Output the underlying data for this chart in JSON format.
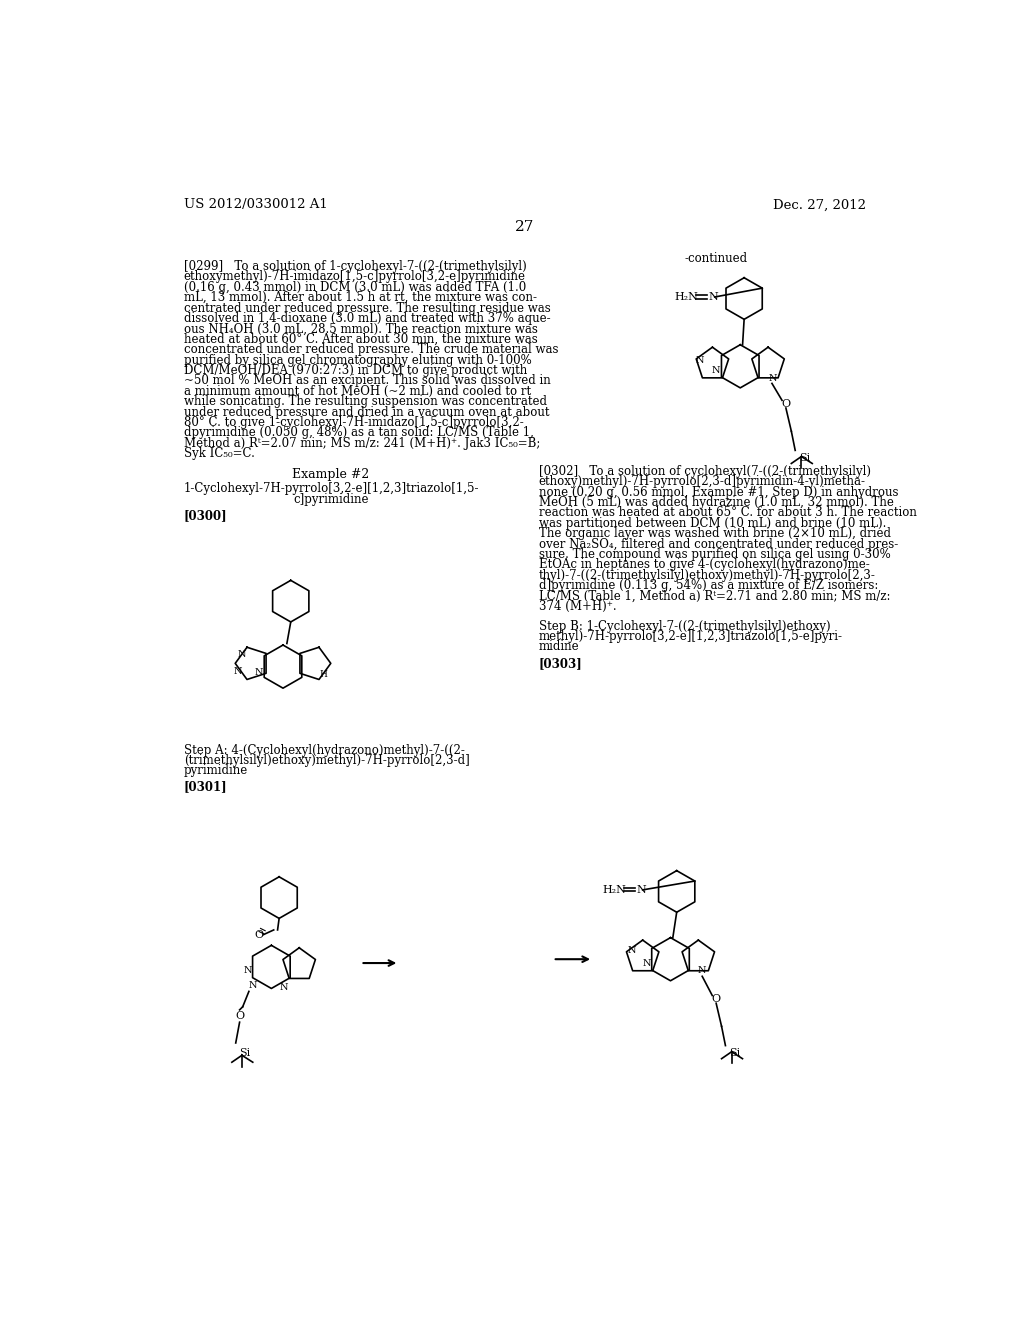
{
  "page_header_left": "US 2012/0330012 A1",
  "page_header_right": "Dec. 27, 2012",
  "page_number": "27",
  "continued_label": "-continued",
  "background_color": "#ffffff",
  "text_color": "#000000",
  "font_size_body": 8.5,
  "font_size_header": 9.5,
  "font_size_page_num": 11,
  "example2_label": "Example #2",
  "example2_title": "1-Cyclohexyl-7H-pyrrolo[3,2-e][1,2,3]triazolo[1,5-\nc]pyrimidine",
  "paragraph_0300_label": "[0300]",
  "paragraph_0301_label": "[0301]",
  "paragraph_0302_label": "[0302]",
  "paragraph_0303_label": "[0303]",
  "step_a_label_line1": "Step A: 4-(Cyclohexyl(hydrazono)methyl)-7-((2-",
  "step_a_label_line2": "(trimethylsilyl)ethoxy)methyl)-7H-pyrrolo[2,3-d]",
  "step_a_label_line3": "pyrimidine",
  "step_b_label_line1": "Step B: 1-Cyclohexyl-7-((2-(trimethylsilyl)ethoxy)",
  "step_b_label_line2": "methyl)-7H-pyrrolo[3,2-e][1,2,3]triazolo[1,5-e]pyri-",
  "step_b_label_line3": "midine"
}
